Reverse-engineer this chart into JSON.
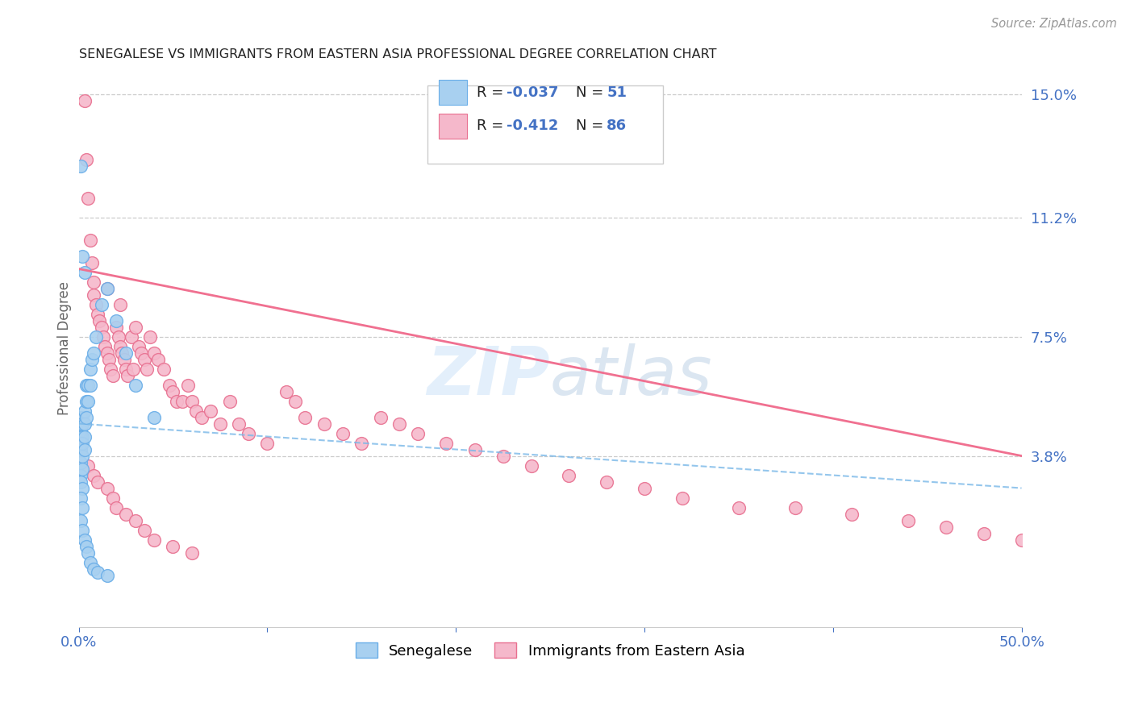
{
  "title": "SENEGALESE VS IMMIGRANTS FROM EASTERN ASIA PROFESSIONAL DEGREE CORRELATION CHART",
  "source": "Source: ZipAtlas.com",
  "ylabel": "Professional Degree",
  "xlim": [
    0.0,
    0.5
  ],
  "ylim": [
    -0.015,
    0.158
  ],
  "ytick_positions": [
    0.038,
    0.075,
    0.112,
    0.15
  ],
  "ytick_labels": [
    "3.8%",
    "7.5%",
    "11.2%",
    "15.0%"
  ],
  "senegalese_color": "#a8d0f0",
  "eastern_asia_color": "#f5b8cb",
  "senegalese_edge": "#6aaee8",
  "eastern_asia_edge": "#e87090",
  "watermark_text": "ZIPAtlas",
  "senegalese_x": [
    0.001,
    0.001,
    0.001,
    0.001,
    0.001,
    0.001,
    0.001,
    0.001,
    0.002,
    0.002,
    0.002,
    0.002,
    0.002,
    0.002,
    0.003,
    0.003,
    0.003,
    0.003,
    0.004,
    0.004,
    0.004,
    0.005,
    0.005,
    0.006,
    0.006,
    0.007,
    0.008,
    0.009,
    0.012,
    0.015,
    0.02,
    0.025,
    0.03,
    0.04,
    0.001,
    0.002,
    0.003,
    0.001,
    0.002,
    0.001,
    0.002,
    0.001,
    0.002,
    0.003,
    0.004,
    0.005,
    0.006,
    0.008,
    0.01,
    0.015
  ],
  "senegalese_y": [
    0.05,
    0.048,
    0.046,
    0.044,
    0.042,
    0.04,
    0.036,
    0.032,
    0.05,
    0.048,
    0.044,
    0.042,
    0.038,
    0.034,
    0.052,
    0.048,
    0.044,
    0.04,
    0.06,
    0.055,
    0.05,
    0.06,
    0.055,
    0.065,
    0.06,
    0.068,
    0.07,
    0.075,
    0.085,
    0.09,
    0.08,
    0.07,
    0.06,
    0.05,
    0.128,
    0.1,
    0.095,
    0.03,
    0.028,
    0.025,
    0.022,
    0.018,
    0.015,
    0.012,
    0.01,
    0.008,
    0.005,
    0.003,
    0.002,
    0.001
  ],
  "eastern_asia_x": [
    0.003,
    0.004,
    0.005,
    0.006,
    0.007,
    0.008,
    0.008,
    0.009,
    0.01,
    0.011,
    0.012,
    0.013,
    0.014,
    0.015,
    0.015,
    0.016,
    0.017,
    0.018,
    0.02,
    0.021,
    0.022,
    0.022,
    0.023,
    0.024,
    0.025,
    0.026,
    0.028,
    0.029,
    0.03,
    0.032,
    0.033,
    0.035,
    0.036,
    0.038,
    0.04,
    0.042,
    0.045,
    0.048,
    0.05,
    0.052,
    0.055,
    0.058,
    0.06,
    0.062,
    0.065,
    0.07,
    0.075,
    0.08,
    0.085,
    0.09,
    0.1,
    0.11,
    0.115,
    0.12,
    0.13,
    0.14,
    0.15,
    0.16,
    0.17,
    0.18,
    0.195,
    0.21,
    0.225,
    0.24,
    0.26,
    0.28,
    0.3,
    0.32,
    0.35,
    0.38,
    0.41,
    0.44,
    0.46,
    0.48,
    0.5,
    0.005,
    0.008,
    0.01,
    0.015,
    0.018,
    0.02,
    0.025,
    0.03,
    0.035,
    0.04,
    0.05,
    0.06
  ],
  "eastern_asia_y": [
    0.148,
    0.13,
    0.118,
    0.105,
    0.098,
    0.092,
    0.088,
    0.085,
    0.082,
    0.08,
    0.078,
    0.075,
    0.072,
    0.09,
    0.07,
    0.068,
    0.065,
    0.063,
    0.078,
    0.075,
    0.085,
    0.072,
    0.07,
    0.068,
    0.065,
    0.063,
    0.075,
    0.065,
    0.078,
    0.072,
    0.07,
    0.068,
    0.065,
    0.075,
    0.07,
    0.068,
    0.065,
    0.06,
    0.058,
    0.055,
    0.055,
    0.06,
    0.055,
    0.052,
    0.05,
    0.052,
    0.048,
    0.055,
    0.048,
    0.045,
    0.042,
    0.058,
    0.055,
    0.05,
    0.048,
    0.045,
    0.042,
    0.05,
    0.048,
    0.045,
    0.042,
    0.04,
    0.038,
    0.035,
    0.032,
    0.03,
    0.028,
    0.025,
    0.022,
    0.022,
    0.02,
    0.018,
    0.016,
    0.014,
    0.012,
    0.035,
    0.032,
    0.03,
    0.028,
    0.025,
    0.022,
    0.02,
    0.018,
    0.015,
    0.012,
    0.01,
    0.008
  ]
}
